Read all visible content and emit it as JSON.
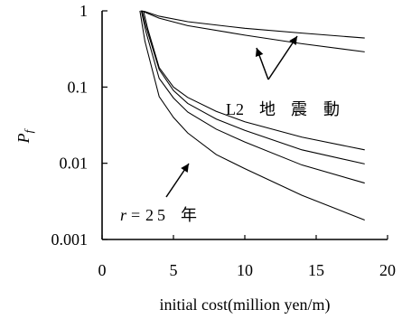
{
  "chart_data": {
    "type": "line",
    "title": "",
    "xlabel": "initial cost(million yen/m)",
    "ylabel": "Pf",
    "xlim": [
      0,
      20
    ],
    "ylim": [
      0.001,
      1
    ],
    "yscale": "log",
    "x_ticks": [
      "0",
      "5",
      "10",
      "15",
      "20"
    ],
    "y_ticks": [
      "0.001",
      "0.01",
      "0.1",
      "1"
    ],
    "series": [
      {
        "values": [
          [
            2.7,
            1.0
          ],
          [
            3.0,
            0.98
          ],
          [
            4.0,
            0.85
          ],
          [
            6.0,
            0.72
          ],
          [
            10.0,
            0.59
          ],
          [
            14.0,
            0.51
          ],
          [
            18.4,
            0.44
          ]
        ]
      },
      {
        "values": [
          [
            2.8,
            1.0
          ],
          [
            3.0,
            0.96
          ],
          [
            4.0,
            0.8
          ],
          [
            6.0,
            0.64
          ],
          [
            10.0,
            0.48
          ],
          [
            14.0,
            0.37
          ],
          [
            18.4,
            0.29
          ]
        ]
      },
      {
        "values": [
          [
            2.9,
            1.0
          ],
          [
            3.2,
            0.58
          ],
          [
            4.0,
            0.18
          ],
          [
            5.0,
            0.1
          ],
          [
            6.0,
            0.073
          ],
          [
            8.0,
            0.048
          ],
          [
            10.0,
            0.035
          ],
          [
            14.0,
            0.022
          ],
          [
            18.4,
            0.015
          ]
        ]
      },
      {
        "values": [
          [
            2.8,
            1.0
          ],
          [
            3.1,
            0.6
          ],
          [
            4.0,
            0.17
          ],
          [
            5.0,
            0.09
          ],
          [
            6.0,
            0.061
          ],
          [
            8.0,
            0.038
          ],
          [
            10.0,
            0.027
          ],
          [
            14.0,
            0.015
          ],
          [
            18.4,
            0.0098
          ]
        ]
      },
      {
        "values": [
          [
            2.75,
            1.0
          ],
          [
            3.05,
            0.55
          ],
          [
            4.0,
            0.13
          ],
          [
            5.0,
            0.072
          ],
          [
            6.0,
            0.047
          ],
          [
            8.0,
            0.028
          ],
          [
            10.0,
            0.019
          ],
          [
            14.0,
            0.0095
          ],
          [
            18.4,
            0.0055
          ]
        ]
      },
      {
        "values": [
          [
            2.65,
            1.0
          ],
          [
            3.0,
            0.4
          ],
          [
            4.0,
            0.075
          ],
          [
            5.0,
            0.04
          ],
          [
            6.0,
            0.025
          ],
          [
            8.0,
            0.013
          ],
          [
            10.0,
            0.0085
          ],
          [
            14.0,
            0.0038
          ],
          [
            18.4,
            0.0018
          ]
        ]
      }
    ],
    "annotations": [
      {
        "text_parts": [
          "L2",
          "地",
          "震",
          "動"
        ]
      },
      {
        "prefix": "r",
        "text_parts": [
          "=",
          "2",
          "5",
          "年"
        ]
      }
    ]
  }
}
